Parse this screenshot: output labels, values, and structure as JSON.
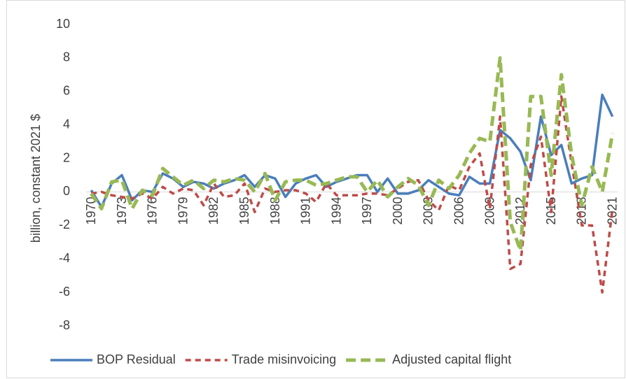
{
  "chart_data": {
    "type": "line",
    "y_label": "billion, constant 2021 $",
    "categories": [
      "1970",
      null,
      null,
      "1973",
      null,
      null,
      "1976",
      null,
      null,
      "1979",
      null,
      null,
      "1982",
      null,
      null,
      "1985",
      null,
      null,
      "1988",
      null,
      null,
      "1991",
      null,
      null,
      "1994",
      null,
      null,
      "1997",
      null,
      null,
      "2000",
      null,
      null,
      "2003",
      null,
      null,
      "2006",
      null,
      null,
      "2009",
      null,
      null,
      "2012",
      null,
      null,
      "2015",
      null,
      null,
      "2018",
      null,
      null,
      "2021"
    ],
    "series": [
      {
        "name": "BOP Residual",
        "color": "#4a7ebb",
        "dash": "solid",
        "values": [
          0.1,
          -0.9,
          0.5,
          1.0,
          -0.5,
          0.1,
          0.0,
          1.1,
          0.8,
          0.3,
          0.6,
          0.5,
          0.2,
          0.5,
          0.7,
          1.0,
          0.3,
          1.0,
          0.8,
          -0.3,
          0.5,
          0.8,
          1.0,
          0.3,
          0.6,
          0.8,
          1.0,
          1.0,
          0.0,
          0.8,
          -0.1,
          -0.1,
          0.1,
          0.7,
          0.3,
          -0.1,
          -0.2,
          0.9,
          0.5,
          0.5,
          3.7,
          3.2,
          2.4,
          0.7,
          4.5,
          2.2,
          2.8,
          0.5,
          0.8,
          1.0,
          5.8,
          4.5
        ]
      },
      {
        "name": "Trade misinvoicing",
        "color": "#be4b48",
        "dash": "dashed",
        "values": [
          -0.1,
          0.0,
          -0.2,
          -0.3,
          -0.4,
          -0.1,
          -0.4,
          0.3,
          -0.1,
          0.2,
          0.1,
          -0.8,
          0.5,
          -0.3,
          -0.2,
          0.5,
          -1.2,
          0.2,
          0.0,
          0.1,
          0.1,
          -0.1,
          -0.6,
          0.5,
          -0.2,
          -0.2,
          -0.2,
          -0.1,
          -0.1,
          -0.2,
          0.2,
          0.6,
          0.7,
          -0.5,
          -1.1,
          0.4,
          0.1,
          1.5,
          2.3,
          -1.0,
          4.5,
          -4.6,
          -4.3,
          1.6,
          3.3,
          -1.2,
          5.7,
          1.7,
          -2.0,
          -2.0,
          -6.0,
          -1.0
        ]
      },
      {
        "name": "Adjusted capital flight",
        "color": "#98b954",
        "dash": "dashed",
        "values": [
          -0.1,
          -1.0,
          0.6,
          0.7,
          -1.0,
          0.1,
          -0.2,
          1.4,
          0.9,
          0.4,
          0.7,
          0.2,
          0.7,
          0.6,
          0.8,
          0.7,
          0.0,
          1.1,
          -0.5,
          0.6,
          0.7,
          0.7,
          0.4,
          0.5,
          0.7,
          0.9,
          0.9,
          0.0,
          0.7,
          -0.3,
          0.3,
          0.8,
          0.4,
          -0.8,
          0.7,
          0.2,
          1.0,
          2.3,
          3.2,
          3.0,
          8.0,
          -1.8,
          -3.5,
          5.7,
          5.7,
          1.0,
          7.0,
          2.2,
          -0.8,
          1.5,
          0.0,
          3.5
        ]
      }
    ],
    "ylim": [
      -8,
      10
    ],
    "yticks": [
      -8,
      -6,
      -4,
      -2,
      0,
      2,
      4,
      6,
      8,
      10
    ],
    "legend": "bottom"
  }
}
